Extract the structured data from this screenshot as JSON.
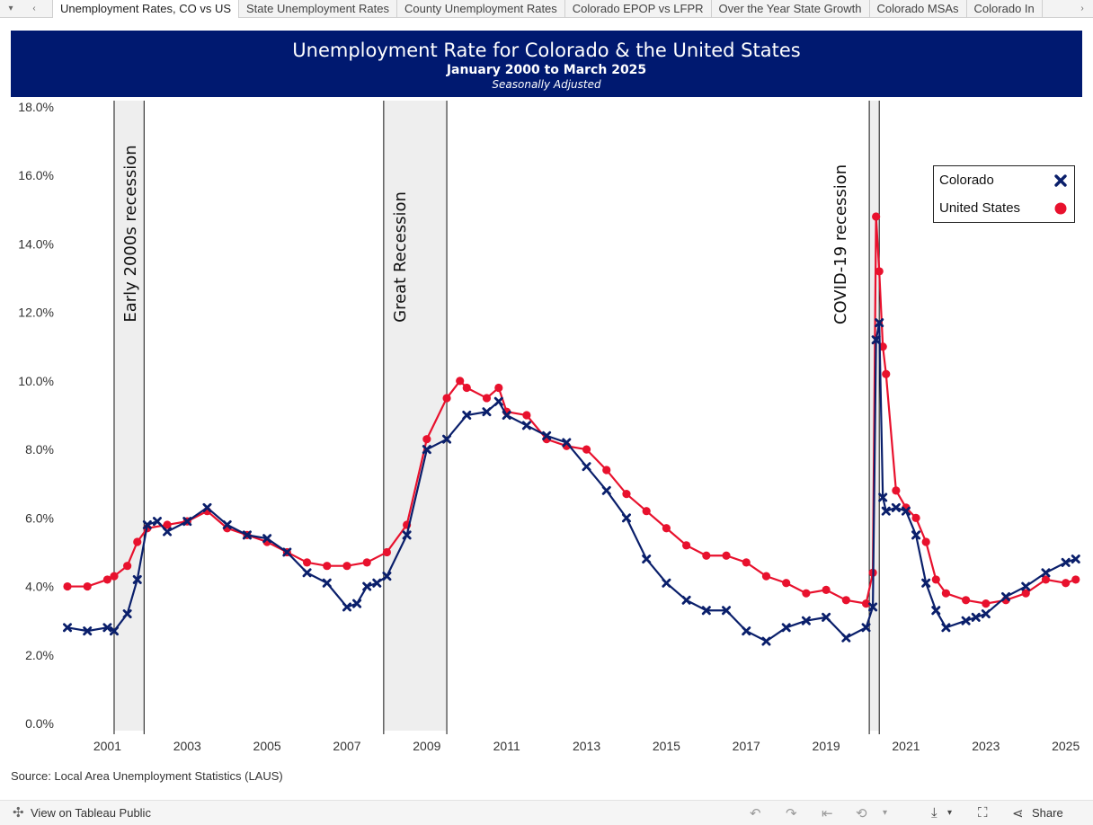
{
  "tabs": {
    "items": [
      "Unemployment Rates, CO vs US",
      "State Unemployment Rates",
      "County Unemployment Rates",
      "Colorado EPOP vs LFPR",
      "Over the Year State Growth",
      "Colorado MSAs",
      "Colorado In"
    ],
    "active_index": 0
  },
  "header": {
    "title": "Unemployment Rate for Colorado & the United States",
    "subtitle": "January 2000 to March 2025",
    "note": "Seasonally Adjusted"
  },
  "source": "Source: Local Area Unemployment Statistics (LAUS)",
  "footer": {
    "view_label": "View on Tableau Public",
    "share_label": "Share"
  },
  "colors": {
    "colorado": "#0a1f6b",
    "united_states": "#e8112d",
    "header_bg": "#001970",
    "recession_band": "#eeeeee"
  },
  "chart_data": {
    "type": "line",
    "title": "Unemployment Rate for Colorado & the United States",
    "subtitle": "January 2000 to March 2025",
    "xlabel": "",
    "ylabel": "",
    "xlim": [
      2000.0,
      2025.3
    ],
    "ylim": [
      0,
      18
    ],
    "y_ticks": [
      "0.0%",
      "2.0%",
      "4.0%",
      "6.0%",
      "8.0%",
      "10.0%",
      "12.0%",
      "14.0%",
      "16.0%",
      "18.0%"
    ],
    "y_tick_values": [
      0,
      2,
      4,
      6,
      8,
      10,
      12,
      14,
      16,
      18
    ],
    "x_ticks": [
      "2001",
      "2003",
      "2005",
      "2007",
      "2009",
      "2011",
      "2013",
      "2015",
      "2017",
      "2019",
      "2021",
      "2023",
      "2025"
    ],
    "x_tick_values": [
      2001,
      2003,
      2005,
      2007,
      2009,
      2011,
      2013,
      2015,
      2017,
      2019,
      2021,
      2023,
      2025
    ],
    "grid": false,
    "legend_position": "top-right",
    "recessions": [
      {
        "label": "Early 2000s recession",
        "start": 2001.17,
        "end": 2001.92
      },
      {
        "label": "Great Recession",
        "start": 2007.92,
        "end": 2009.5
      },
      {
        "label": "COVID-19 recession",
        "start": 2020.08,
        "end": 2020.33
      }
    ],
    "series": [
      {
        "name": "Colorado",
        "marker": "x",
        "x": [
          2000.0,
          2000.5,
          2001.0,
          2001.17,
          2001.5,
          2001.75,
          2002.0,
          2002.25,
          2002.5,
          2003.0,
          2003.5,
          2004.0,
          2004.5,
          2005.0,
          2005.5,
          2006.0,
          2006.5,
          2007.0,
          2007.25,
          2007.5,
          2007.75,
          2008.0,
          2008.5,
          2009.0,
          2009.5,
          2010.0,
          2010.5,
          2010.8,
          2011.0,
          2011.5,
          2012.0,
          2012.5,
          2013.0,
          2013.5,
          2014.0,
          2014.5,
          2015.0,
          2015.5,
          2016.0,
          2016.5,
          2017.0,
          2017.5,
          2018.0,
          2018.5,
          2019.0,
          2019.5,
          2020.0,
          2020.17,
          2020.25,
          2020.33,
          2020.42,
          2020.5,
          2020.75,
          2021.0,
          2021.25,
          2021.5,
          2021.75,
          2022.0,
          2022.5,
          2022.75,
          2023.0,
          2023.5,
          2024.0,
          2024.5,
          2025.0,
          2025.25
        ],
        "y": [
          2.8,
          2.7,
          2.8,
          2.7,
          3.2,
          4.2,
          5.8,
          5.9,
          5.6,
          5.9,
          6.3,
          5.8,
          5.5,
          5.4,
          5.0,
          4.4,
          4.1,
          3.4,
          3.5,
          4.0,
          4.1,
          4.3,
          5.5,
          8.0,
          8.3,
          9.0,
          9.1,
          9.4,
          9.0,
          8.7,
          8.4,
          8.2,
          7.5,
          6.8,
          6.0,
          4.8,
          4.1,
          3.6,
          3.3,
          3.3,
          2.7,
          2.4,
          2.8,
          3.0,
          3.1,
          2.5,
          2.8,
          3.4,
          11.2,
          11.7,
          6.6,
          6.2,
          6.3,
          6.2,
          5.5,
          4.1,
          3.3,
          2.8,
          3.0,
          3.1,
          3.2,
          3.7,
          4.0,
          4.4,
          4.7,
          4.8
        ]
      },
      {
        "name": "United States",
        "marker": "circle",
        "x": [
          2000.0,
          2000.5,
          2001.0,
          2001.17,
          2001.5,
          2001.75,
          2002.0,
          2002.5,
          2003.0,
          2003.5,
          2004.0,
          2004.5,
          2005.0,
          2005.5,
          2006.0,
          2006.5,
          2007.0,
          2007.5,
          2008.0,
          2008.5,
          2009.0,
          2009.5,
          2009.83,
          2010.0,
          2010.5,
          2010.8,
          2011.0,
          2011.5,
          2012.0,
          2012.5,
          2013.0,
          2013.5,
          2014.0,
          2014.5,
          2015.0,
          2015.5,
          2016.0,
          2016.5,
          2017.0,
          2017.5,
          2018.0,
          2018.5,
          2019.0,
          2019.5,
          2020.0,
          2020.17,
          2020.25,
          2020.33,
          2020.42,
          2020.5,
          2020.75,
          2021.0,
          2021.25,
          2021.5,
          2021.75,
          2022.0,
          2022.5,
          2023.0,
          2023.5,
          2024.0,
          2024.5,
          2025.0,
          2025.25
        ],
        "y": [
          4.0,
          4.0,
          4.2,
          4.3,
          4.6,
          5.3,
          5.7,
          5.8,
          5.9,
          6.2,
          5.7,
          5.5,
          5.3,
          5.0,
          4.7,
          4.6,
          4.6,
          4.7,
          5.0,
          5.8,
          8.3,
          9.5,
          10.0,
          9.8,
          9.5,
          9.8,
          9.1,
          9.0,
          8.3,
          8.1,
          8.0,
          7.4,
          6.7,
          6.2,
          5.7,
          5.2,
          4.9,
          4.9,
          4.7,
          4.3,
          4.1,
          3.8,
          3.9,
          3.6,
          3.5,
          4.4,
          14.8,
          13.2,
          11.0,
          10.2,
          6.8,
          6.3,
          6.0,
          5.3,
          4.2,
          3.8,
          3.6,
          3.5,
          3.6,
          3.8,
          4.2,
          4.1,
          4.2
        ]
      }
    ]
  }
}
